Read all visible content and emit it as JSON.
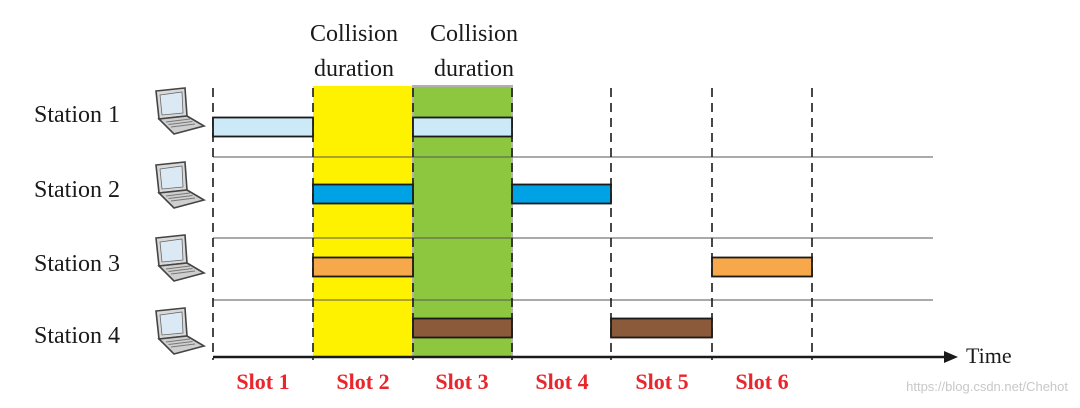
{
  "stations": [
    {
      "label": "Station 1",
      "icon": "laptop-icon"
    },
    {
      "label": "Station 2",
      "icon": "laptop-icon"
    },
    {
      "label": "Station 3",
      "icon": "laptop-icon"
    },
    {
      "label": "Station 4",
      "icon": "laptop-icon"
    }
  ],
  "slots": [
    "Slot 1",
    "Slot 2",
    "Slot 3",
    "Slot 4",
    "Slot 5",
    "Slot 6"
  ],
  "collision_labels": [
    {
      "line1": "Collision",
      "line2": "duration",
      "slot": 2,
      "color": "#fff200"
    },
    {
      "line1": "Collision",
      "line2": "duration",
      "slot": 3,
      "color": "#8dc63f"
    }
  ],
  "axis": {
    "time_label": "Time"
  },
  "frames": [
    {
      "station": 1,
      "slot": 1,
      "color": "#cce9f7"
    },
    {
      "station": 1,
      "slot": 3,
      "color": "#cce9f7"
    },
    {
      "station": 2,
      "slot": 2,
      "color": "#00a2e6"
    },
    {
      "station": 2,
      "slot": 4,
      "color": "#00a2e6"
    },
    {
      "station": 3,
      "slot": 2,
      "color": "#f6a84a"
    },
    {
      "station": 3,
      "slot": 6,
      "color": "#f6a84a"
    },
    {
      "station": 4,
      "slot": 3,
      "color": "#8b5a3a"
    },
    {
      "station": 4,
      "slot": 5,
      "color": "#8b5a3a"
    }
  ],
  "colors": {
    "slot_label": "#e8262c",
    "axis": "#1a1a1a",
    "divider": "#555555"
  },
  "watermark": "https://blog.csdn.net/Chehot"
}
